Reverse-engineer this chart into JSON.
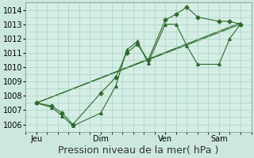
{
  "background_color": "#cce8dd",
  "plot_bg_color": "#d6ede5",
  "grid_color": "#99ccbb",
  "line_color": "#2d6a2d",
  "ylim": [
    1005.5,
    1014.5
  ],
  "yticks": [
    1006,
    1007,
    1008,
    1009,
    1010,
    1011,
    1012,
    1013,
    1014
  ],
  "xlabel": "Pression niveau de la mer( hPa )",
  "xlabel_fontsize": 9,
  "tick_fontsize": 7,
  "xtick_labels": [
    "Jeu",
    "Dim",
    "Ven",
    "Sam"
  ],
  "xtick_positions": [
    0.5,
    3.5,
    6.5,
    9.0
  ],
  "xlim": [
    0.0,
    10.5
  ],
  "series1": {
    "x": [
      0.5,
      1.2,
      1.7,
      2.2,
      3.5,
      4.2,
      4.7,
      5.2,
      5.7,
      6.5,
      7.0,
      7.5,
      8.0,
      9.0,
      9.5,
      10.0
    ],
    "y": [
      1007.5,
      1007.3,
      1006.8,
      1006.0,
      1008.2,
      1009.3,
      1011.0,
      1011.6,
      1010.5,
      1013.3,
      1013.7,
      1014.2,
      1013.5,
      1013.2,
      1013.2,
      1013.0
    ],
    "marker": "D",
    "marker_size": 2.5
  },
  "series2": {
    "x": [
      0.5,
      1.2,
      1.7,
      2.2,
      3.5,
      4.2,
      4.7,
      5.2,
      5.7,
      6.5,
      7.0,
      7.5,
      8.0,
      9.0,
      9.5,
      10.0
    ],
    "y": [
      1007.5,
      1007.2,
      1006.6,
      1005.9,
      1006.8,
      1008.7,
      1011.2,
      1011.8,
      1010.3,
      1013.0,
      1013.0,
      1011.5,
      1010.2,
      1010.2,
      1012.0,
      1013.0
    ],
    "marker": "^",
    "marker_size": 2.5
  },
  "series3": {
    "x": [
      0.5,
      10.0
    ],
    "y": [
      1007.5,
      1013.1
    ]
  },
  "series4": {
    "x": [
      0.5,
      10.0
    ],
    "y": [
      1007.5,
      1013.0
    ]
  }
}
